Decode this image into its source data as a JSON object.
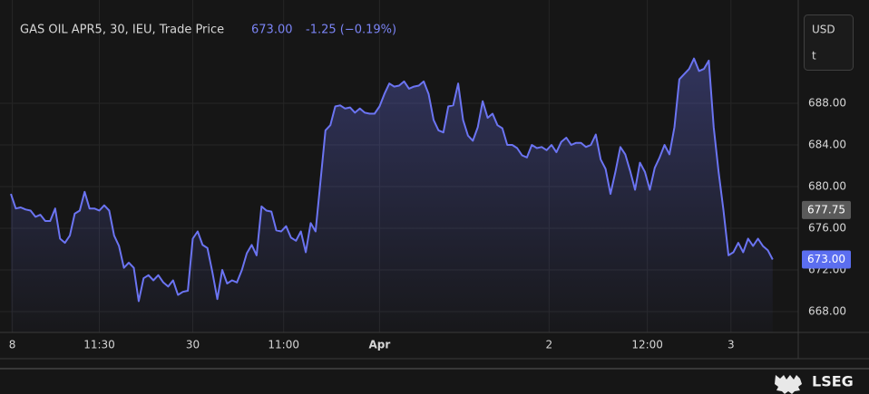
{
  "chart_data": {
    "type": "line",
    "title": "GAS OIL APR5, 30, IEU, Trade Price",
    "last_price": "673.00",
    "change": "-1.25 (−0.19%)",
    "currency": "USD",
    "unit": "t",
    "brand": "LSEG",
    "series": [
      {
        "name": "Trade Price",
        "color": "#6b74f2",
        "values": [
          679.3,
          677.9,
          678.0,
          677.8,
          677.7,
          677.1,
          677.3,
          676.7,
          676.7,
          677.9,
          675.0,
          674.6,
          675.3,
          677.4,
          677.7,
          679.5,
          677.9,
          677.9,
          677.7,
          678.2,
          677.7,
          675.3,
          674.3,
          672.2,
          672.7,
          672.2,
          669.0,
          671.2,
          671.5,
          671.0,
          671.5,
          670.8,
          670.4,
          671.0,
          669.6,
          669.9,
          670.0,
          675.0,
          675.7,
          674.4,
          674.1,
          671.8,
          669.2,
          672.0,
          670.7,
          671.0,
          670.8,
          672.0,
          673.6,
          674.4,
          673.4,
          678.1,
          677.7,
          677.6,
          675.8,
          675.7,
          676.2,
          675.1,
          674.8,
          675.7,
          673.7,
          676.5,
          675.7,
          680.5,
          685.4,
          685.9,
          687.7,
          687.8,
          687.5,
          687.6,
          687.1,
          687.5,
          687.1,
          687.0,
          687.0,
          687.7,
          688.9,
          689.9,
          689.6,
          689.7,
          690.1,
          689.4,
          689.6,
          689.7,
          690.1,
          688.9,
          686.4,
          685.4,
          685.2,
          687.7,
          687.8,
          689.9,
          686.4,
          684.9,
          684.4,
          685.7,
          688.2,
          686.6,
          687.0,
          685.9,
          685.6,
          684.0,
          684.0,
          683.7,
          683.0,
          682.8,
          684.0,
          683.7,
          683.8,
          683.5,
          684.0,
          683.3,
          684.3,
          684.7,
          684.0,
          684.2,
          684.2,
          683.8,
          684.0,
          685.0,
          682.6,
          681.7,
          679.3,
          681.4,
          683.8,
          683.1,
          681.5,
          679.7,
          682.3,
          681.4,
          679.7,
          681.8,
          682.8,
          684.0,
          683.1,
          685.7,
          690.3,
          690.8,
          691.3,
          692.3,
          691.1,
          691.3,
          692.1,
          685.7,
          681.4,
          677.7,
          673.4,
          673.7,
          674.6,
          673.7,
          675.0,
          674.3,
          675.0,
          674.3,
          673.9,
          673.0
        ]
      }
    ],
    "xlim": [
      0,
      160.2
    ],
    "xticks": [
      {
        "value": 0.3,
        "label": "8"
      },
      {
        "value": 18,
        "label": "11:30"
      },
      {
        "value": 37,
        "label": "30"
      },
      {
        "value": 55.5,
        "label": "11:00"
      },
      {
        "value": 75,
        "label": "Apr"
      },
      {
        "value": 109.5,
        "label": "2"
      },
      {
        "value": 129.5,
        "label": "12:00"
      },
      {
        "value": 146.5,
        "label": "3"
      }
    ],
    "ylim": [
      666,
      696.7
    ],
    "yticks": [
      {
        "value": 668,
        "label": "668.00"
      },
      {
        "value": 672,
        "label": "672.00"
      },
      {
        "value": 676,
        "label": "676.00"
      },
      {
        "value": 680,
        "label": "680.00"
      },
      {
        "value": 684,
        "label": "684.00"
      },
      {
        "value": 688,
        "label": "688.00"
      }
    ],
    "price_markers": [
      {
        "value": 677.75,
        "label": "677.75",
        "color": "#5a5a5a"
      },
      {
        "value": 673,
        "label": "673.00",
        "color": "#5b6ef0"
      }
    ],
    "grid": true
  }
}
